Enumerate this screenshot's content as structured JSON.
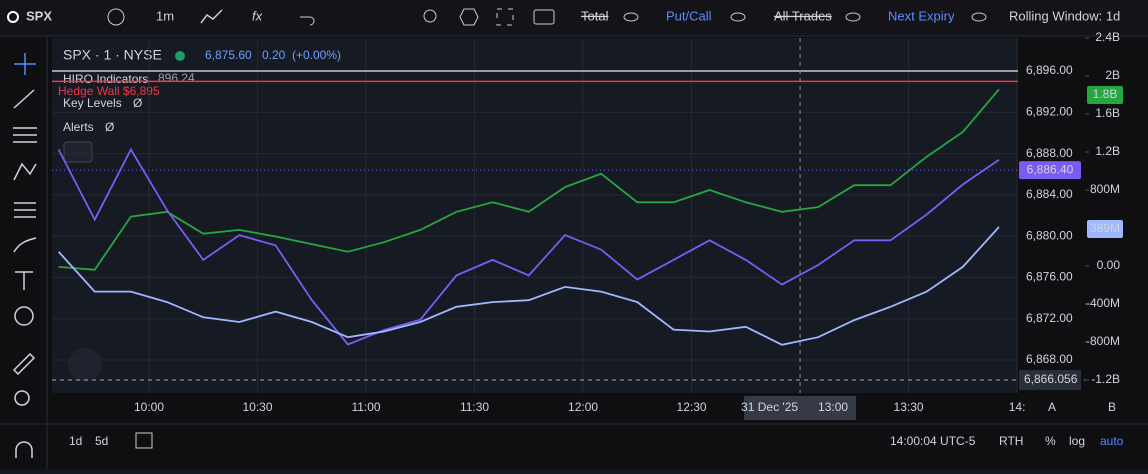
{
  "toolbar": {
    "symbol": "SPX",
    "interval": "1m",
    "filters": [
      "Total",
      "Put/Call",
      "All Trades",
      "Next Expiry"
    ],
    "rolling": "Rolling Window: 1d"
  },
  "legend": {
    "title": "SPX · 1 · NYSE",
    "price": "6,875.60",
    "change": "0.20",
    "change_pct": "(+0.00%)",
    "rows": [
      {
        "label": "HIRO Indicators",
        "value": "896.24"
      },
      {
        "label": "Hedge Wall $6,895"
      },
      {
        "label": "Key Levels",
        "value": "Ø"
      },
      {
        "label": "Alerts",
        "value": "Ø"
      }
    ]
  },
  "chart_data": {
    "type": "line",
    "x": [
      "09:35",
      "09:45",
      "09:55",
      "10:05",
      "10:15",
      "10:25",
      "10:35",
      "10:45",
      "10:55",
      "11:05",
      "11:15",
      "11:25",
      "11:35",
      "11:45",
      "11:55",
      "12:05",
      "12:15",
      "12:25",
      "12:35",
      "12:45",
      "12:55",
      "13:05",
      "13:15",
      "13:25",
      "13:35",
      "13:45",
      "13:55"
    ],
    "xticks": [
      "10:00",
      "10:30",
      "11:00",
      "11:30",
      "12:00",
      "12:30",
      "13:30",
      {
        "value": "14:00",
        "label": "14:"
      }
    ],
    "ylim": [
      6864.8,
      6899.2
    ],
    "yticks": [
      {
        "value": 6868,
        "label": "6,868.00"
      },
      {
        "value": 6872,
        "label": "6,872.00"
      },
      {
        "value": 6876,
        "label": "6,876.00"
      },
      {
        "value": 6880,
        "label": "6,880.00"
      },
      {
        "value": 6884,
        "label": "6,884.00"
      },
      {
        "value": 6888,
        "label": "6,888.00"
      },
      {
        "value": 6892,
        "label": "6,892.00"
      },
      {
        "value": 6896,
        "label": "6,896.00"
      }
    ],
    "y2lim": [
      -1.337,
      2.4
    ],
    "y2ticks": [
      {
        "value": 2.4,
        "label": "2.4B"
      },
      {
        "value": 2,
        "label": "2B"
      },
      {
        "value": 1.6,
        "label": "1.6B"
      },
      {
        "value": 1.2,
        "label": "1.2B"
      },
      {
        "value": 0.8,
        "label": "800M"
      },
      {
        "value": 0,
        "label": "0.00"
      },
      {
        "value": -0.4,
        "label": "-400M"
      },
      {
        "value": -0.8,
        "label": "-800M"
      },
      {
        "value": -1.2,
        "label": "-1.2B"
      }
    ],
    "grid": true,
    "series": [
      {
        "color": "#26a641",
        "axis": "y2",
        "values": [
          -0.01,
          -0.04,
          0.52,
          0.57,
          0.34,
          0.38,
          0.31,
          0.23,
          0.15,
          0.25,
          0.38,
          0.57,
          0.67,
          0.57,
          0.83,
          0.97,
          0.67,
          0.67,
          0.8,
          0.67,
          0.57,
          0.62,
          0.85,
          0.85,
          1.15,
          1.41,
          1.86
        ],
        "last": {
          "value": 1.8,
          "label": "1.8B"
        }
      },
      {
        "color": "#7a5cf5",
        "values": [
          6888.4,
          6881.6,
          6888.4,
          6882.5,
          6877.7,
          6880.1,
          6879.1,
          6873.8,
          6869.5,
          6870.9,
          6871.9,
          6876.2,
          6877.7,
          6876.2,
          6880.1,
          6878.7,
          6875.8,
          6877.7,
          6879.6,
          6877.7,
          6875.3,
          6877.2,
          6879.6,
          6879.6,
          6882.1,
          6885,
          6887.4
        ],
        "last": {
          "value": 6886.4,
          "label": "6,886.40"
        }
      },
      {
        "color": "#9db8ff",
        "axis": "y2",
        "values": [
          0.15,
          -0.27,
          -0.27,
          -0.38,
          -0.54,
          -0.59,
          -0.48,
          -0.59,
          -0.75,
          -0.69,
          -0.59,
          -0.43,
          -0.38,
          -0.36,
          -0.22,
          -0.27,
          -0.38,
          -0.67,
          -0.69,
          -0.64,
          -0.83,
          -0.75,
          -0.57,
          -0.43,
          -0.27,
          -0.01,
          0.41
        ],
        "last": {
          "value": 0.389,
          "label": "389M"
        }
      }
    ],
    "levels": [
      {
        "value": 6896,
        "color": "#c8c8c8"
      },
      {
        "value": 6895,
        "color": "#f23645"
      }
    ],
    "cursor": {
      "value": 6866.056,
      "label": "6,866.056"
    },
    "crosshair": {
      "x": "13:00",
      "date": "31 Dec '25",
      "time": "13:00"
    },
    "scale_letters": [
      "A",
      "B"
    ]
  },
  "footer": {
    "ranges": [
      "1d",
      "5d"
    ],
    "clock": "14:00:04 UTC-5",
    "session": "RTH",
    "options": [
      "%",
      "log",
      "auto"
    ]
  }
}
